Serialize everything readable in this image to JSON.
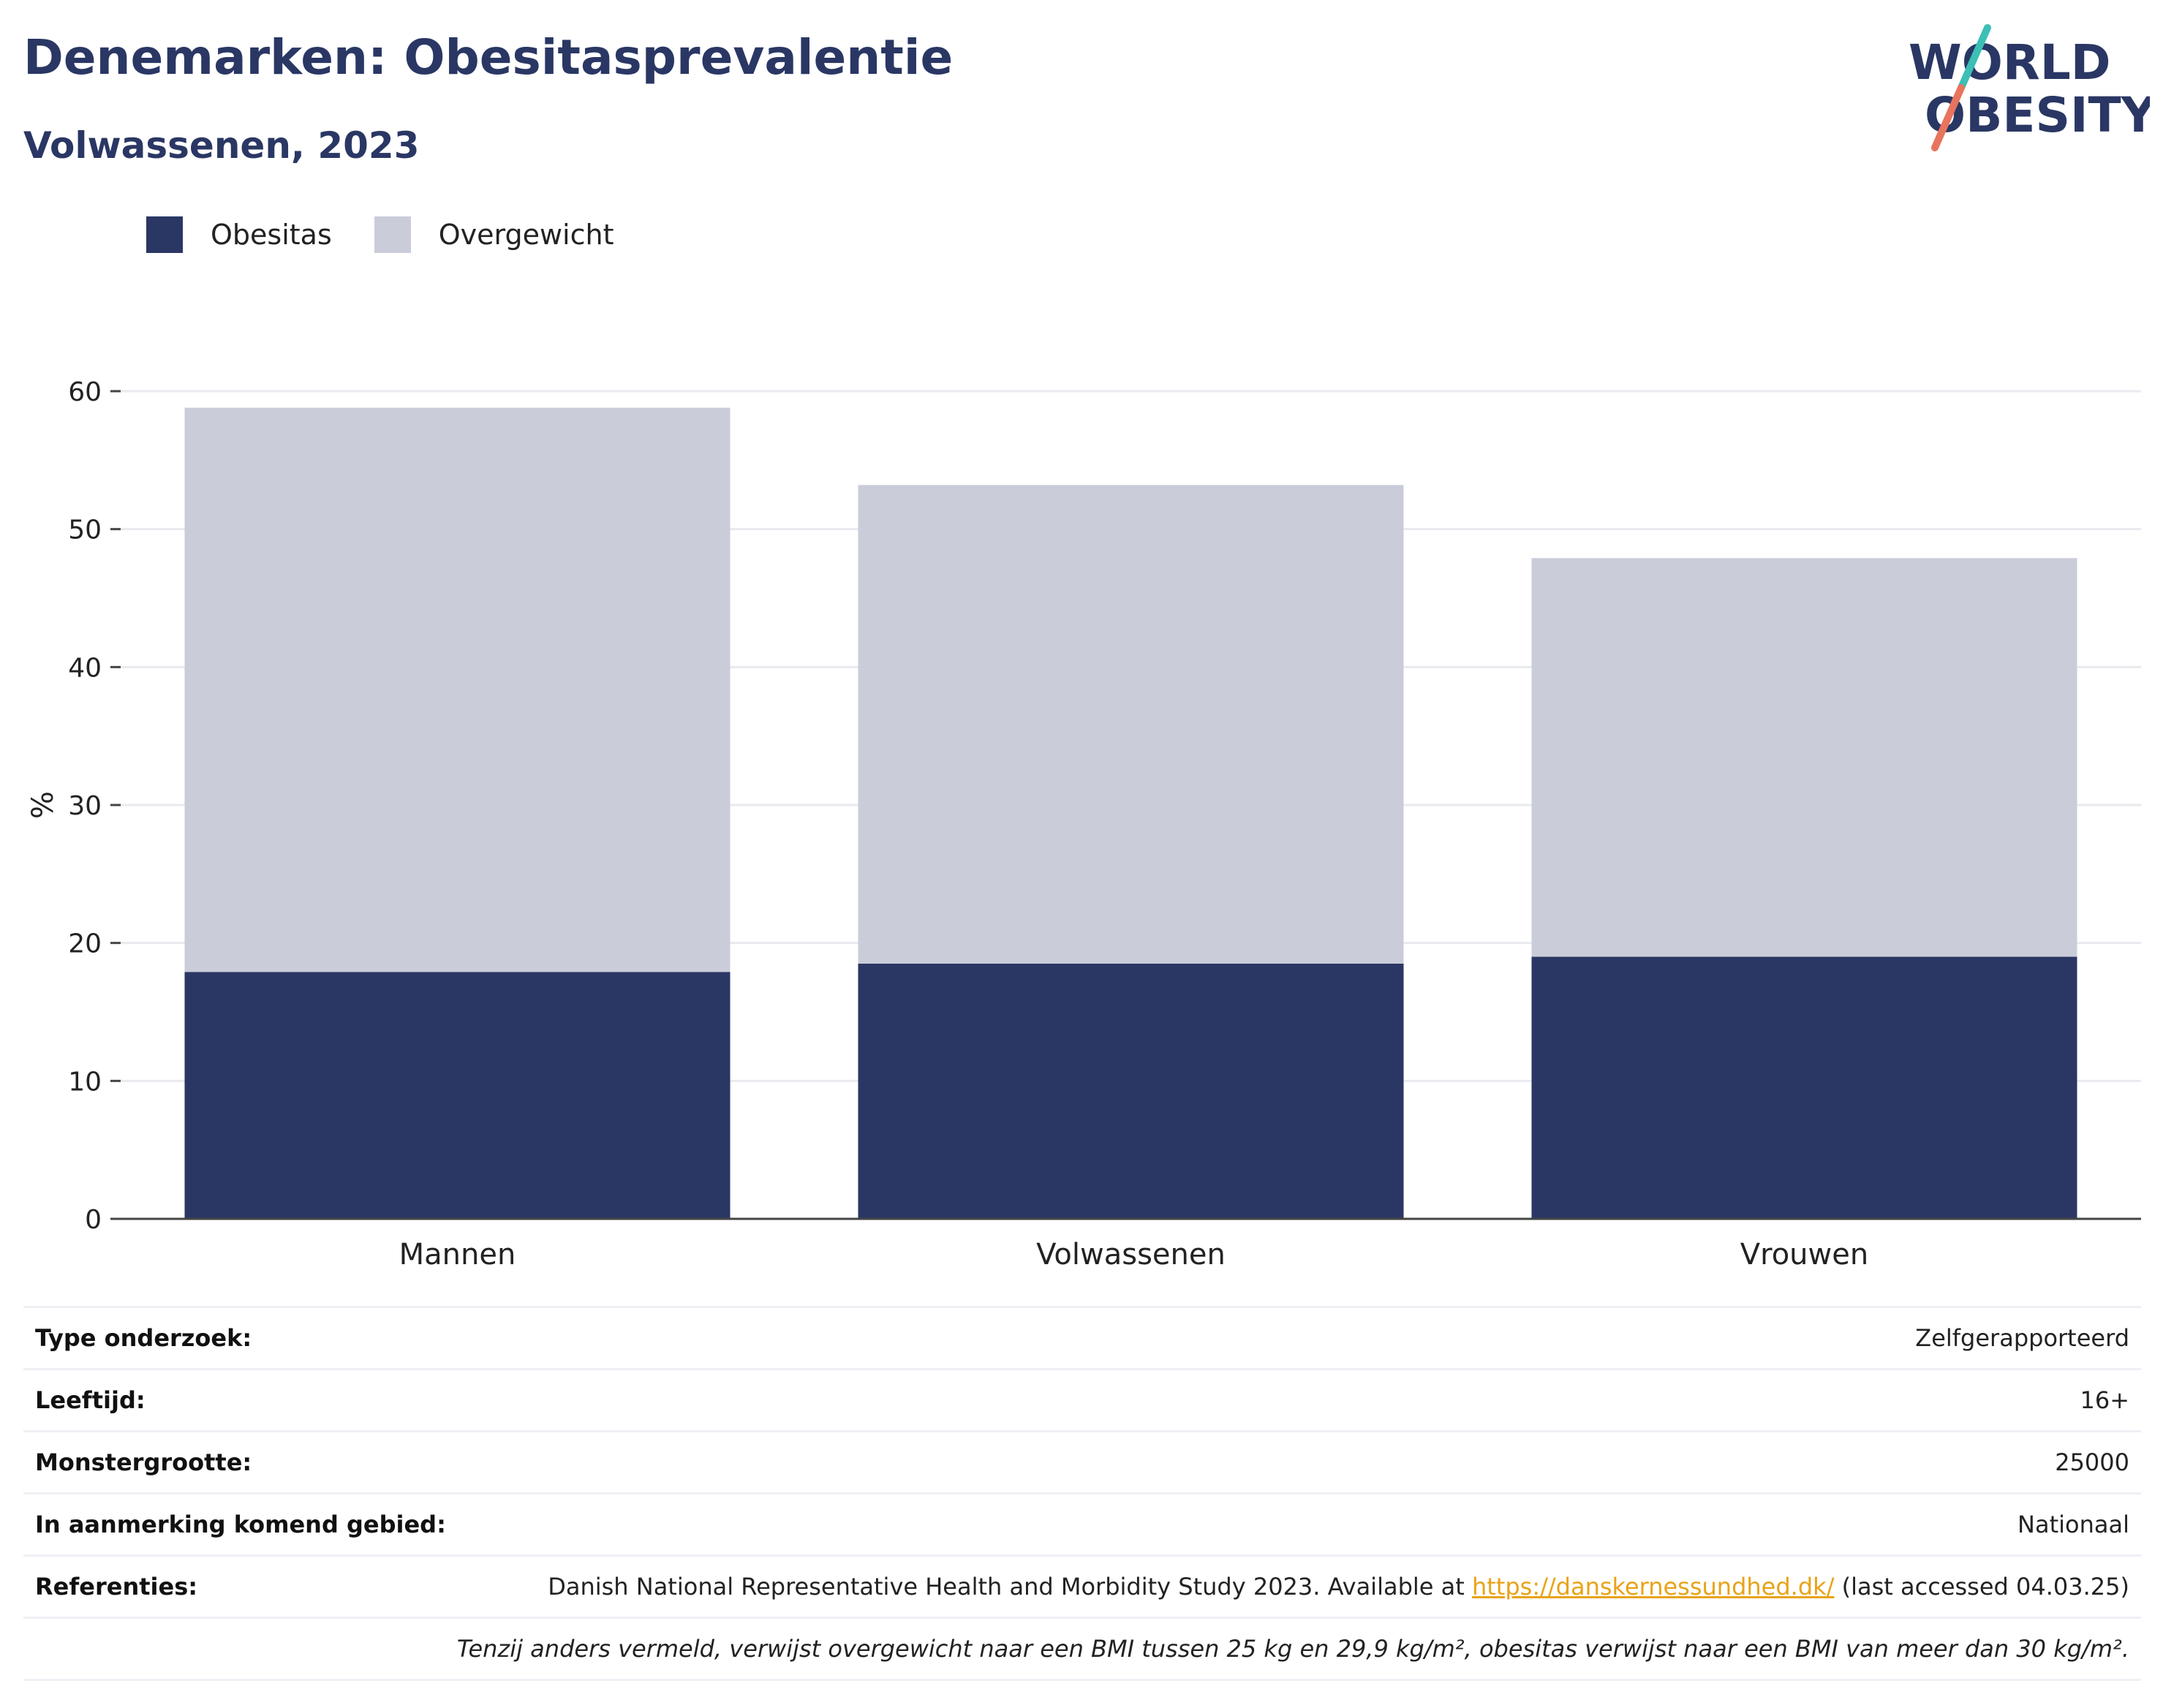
{
  "header": {
    "title": "Denemarken: Obesitasprevalentie",
    "subtitle": "Volwassenen, 2023"
  },
  "logo": {
    "line1": "WORLD",
    "line2": "OBESITY",
    "slash_colors": [
      "#3cbfb4",
      "#e8745e"
    ]
  },
  "colors": {
    "obesity": "#2a3764",
    "overweight": "#cacdd9",
    "title": "#2a3764",
    "link": "#e8a317"
  },
  "chart_data": {
    "type": "bar",
    "stacked": true,
    "categories": [
      "Mannen",
      "Volwassenen",
      "Vrouwen"
    ],
    "series": [
      {
        "name": "Obesitas",
        "values": [
          17.9,
          18.5,
          19.0
        ]
      },
      {
        "name": "Overgewicht",
        "values": [
          40.9,
          34.7,
          28.9
        ]
      }
    ],
    "ylabel": "%",
    "ylim": [
      0,
      60
    ],
    "yticks": [
      0,
      10,
      20,
      30,
      40,
      50,
      60
    ],
    "grid": true,
    "legend": "top-left"
  },
  "info": {
    "rows": [
      {
        "key": "Type onderzoek:",
        "value": "Zelfgerapporteerd"
      },
      {
        "key": "Leeftijd:",
        "value": "16+"
      },
      {
        "key": "Monstergrootte:",
        "value": "25000"
      },
      {
        "key": "In aanmerking komend gebied:",
        "value": "Nationaal"
      }
    ],
    "reference": {
      "key": "Referenties:",
      "text_before": "Danish National Representative Health and Morbidity Study 2023. Available at ",
      "link": "https://danskernessundhed.dk/",
      "text_after": " (last accessed 04.03.25)"
    },
    "note": "Tenzij anders vermeld, verwijst overgewicht naar een BMI tussen 25 kg en 29,9 kg/m², obesitas verwijst naar een BMI van meer dan 30 kg/m²."
  }
}
